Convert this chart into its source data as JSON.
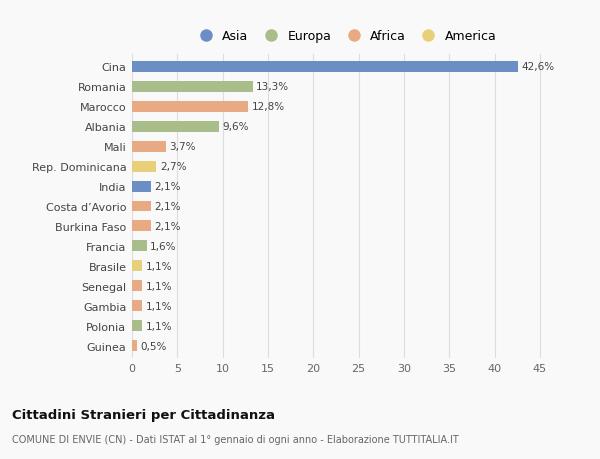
{
  "countries": [
    "Cina",
    "Romania",
    "Marocco",
    "Albania",
    "Mali",
    "Rep. Dominicana",
    "India",
    "Costa d’Avorio",
    "Burkina Faso",
    "Francia",
    "Brasile",
    "Senegal",
    "Gambia",
    "Polonia",
    "Guinea"
  ],
  "values": [
    42.6,
    13.3,
    12.8,
    9.6,
    3.7,
    2.7,
    2.1,
    2.1,
    2.1,
    1.6,
    1.1,
    1.1,
    1.1,
    1.1,
    0.5
  ],
  "labels": [
    "42,6%",
    "13,3%",
    "12,8%",
    "9,6%",
    "3,7%",
    "2,7%",
    "2,1%",
    "2,1%",
    "2,1%",
    "1,6%",
    "1,1%",
    "1,1%",
    "1,1%",
    "1,1%",
    "0,5%"
  ],
  "continents": [
    "Asia",
    "Europa",
    "Africa",
    "Europa",
    "Africa",
    "America",
    "Asia",
    "Africa",
    "Africa",
    "Europa",
    "America",
    "Africa",
    "Africa",
    "Europa",
    "Africa"
  ],
  "continent_colors": {
    "Asia": "#6b8ec4",
    "Europa": "#a8bd8a",
    "Africa": "#e8aa82",
    "America": "#e8d07a"
  },
  "legend_order": [
    "Asia",
    "Europa",
    "Africa",
    "America"
  ],
  "title": "Cittadini Stranieri per Cittadinanza",
  "subtitle": "COMUNE DI ENVIE (CN) - Dati ISTAT al 1° gennaio di ogni anno - Elaborazione TUTTITALIA.IT",
  "xlabel_ticks": [
    0,
    5,
    10,
    15,
    20,
    25,
    30,
    35,
    40,
    45
  ],
  "bg_color": "#f9f9f9",
  "grid_color": "#dddddd",
  "bar_height": 0.55
}
